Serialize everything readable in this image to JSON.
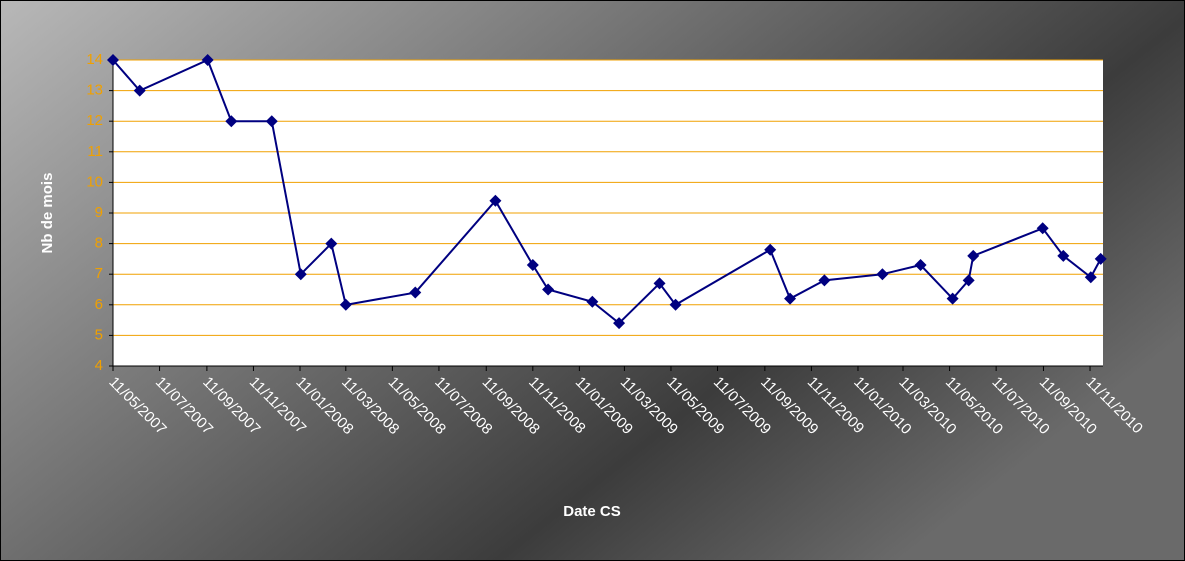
{
  "chart_data": {
    "type": "line",
    "x_label": "Date CS",
    "y_label": "Nb de mois",
    "x": [
      "11/05/2007",
      "15/06/2007",
      "12/09/2007",
      "13/10/2007",
      "05/12/2007",
      "12/01/2008",
      "21/02/2008",
      "11/03/2008",
      "10/06/2008",
      "23/09/2008",
      "11/11/2008",
      "01/12/2008",
      "28/01/2009",
      "04/03/2009",
      "26/04/2009",
      "17/05/2009",
      "18/09/2009",
      "14/10/2009",
      "28/11/2009",
      "12/02/2010",
      "03/04/2010",
      "15/05/2010",
      "05/06/2010",
      "11/06/2010",
      "10/09/2010",
      "07/10/2010",
      "12/11/2010",
      "25/11/2010"
    ],
    "series": [
      {
        "color": "#000080",
        "values": [
          14,
          13,
          14,
          12,
          12,
          7,
          8,
          6,
          6.4,
          9.4,
          7.3,
          6.5,
          6.1,
          5.4,
          6.7,
          6.0,
          7.8,
          6.2,
          6.8,
          7.0,
          7.3,
          6.2,
          6.8,
          7.6,
          8.5,
          7.6,
          6.9,
          7.5
        ]
      }
    ],
    "xlim": [
      "11/05/2007",
      "28/11/2010"
    ],
    "xticks": [
      "11/05/2007",
      "11/07/2007",
      "11/09/2007",
      "11/11/2007",
      "11/01/2008",
      "11/03/2008",
      "11/05/2008",
      "11/07/2008",
      "11/09/2008",
      "11/11/2008",
      "11/01/2009",
      "11/03/2009",
      "11/05/2009",
      "11/07/2009",
      "11/09/2009",
      "11/11/2009",
      "11/01/2010",
      "11/03/2010",
      "11/05/2010",
      "11/07/2010",
      "11/09/2010",
      "11/11/2010"
    ],
    "ylim": [
      4,
      14
    ],
    "yticks": [
      4,
      5,
      6,
      7,
      8,
      9,
      10,
      11,
      12,
      13,
      14
    ],
    "grid": true,
    "grid_color": "#f0a000",
    "tick_label_color": "#f0a000"
  }
}
